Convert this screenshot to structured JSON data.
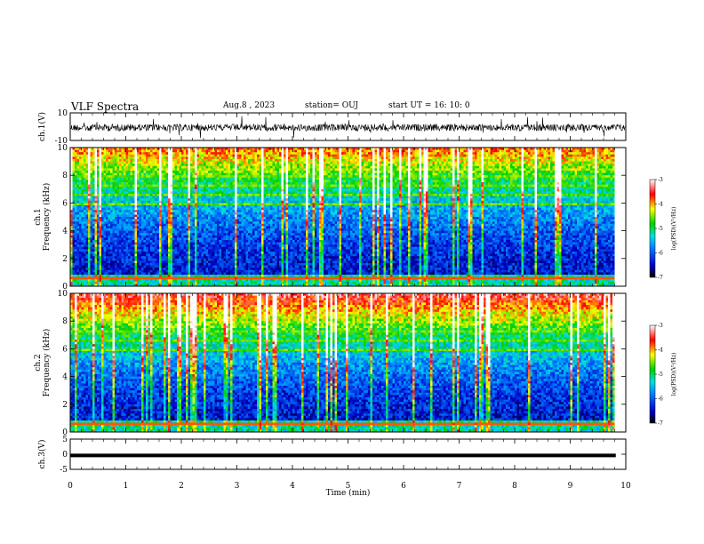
{
  "header": {
    "title": "VLF Spectra",
    "date": "Aug.8 , 2023",
    "station": "station= OUJ",
    "start": "start UT =   16: 10: 0"
  },
  "chart_data": [
    {
      "type": "line",
      "name": "ch1-waveform",
      "ylabel": "ch.1(V)",
      "ylim": [
        -10,
        10
      ],
      "yticks": [
        "10",
        "-10"
      ],
      "xlim": [
        0,
        10
      ],
      "x_units": "min"
    },
    {
      "type": "heatmap",
      "name": "ch1-spectrogram",
      "ylabel": "ch.1\nFrequency (kHz)",
      "ylim": [
        0,
        10
      ],
      "yticks": [
        "0",
        "2",
        "4",
        "6",
        "8",
        "10"
      ],
      "xlim": [
        0,
        10
      ],
      "colorbar": {
        "label": "log(PSD)(V²/Hz)",
        "range": [
          -7,
          -3
        ],
        "ticks": [
          "-3",
          "-4",
          "-5",
          "-6",
          "-7"
        ]
      }
    },
    {
      "type": "heatmap",
      "name": "ch2-spectrogram",
      "ylabel": "ch.2\nFrequency (kHz)",
      "ylim": [
        0,
        10
      ],
      "yticks": [
        "0",
        "2",
        "4",
        "6",
        "8",
        "10"
      ],
      "xlim": [
        0,
        10
      ],
      "colorbar": {
        "label": "log(PSD)(V²/Hz)",
        "range": [
          -7,
          -3
        ],
        "ticks": [
          "-3",
          "-4",
          "-5",
          "-6",
          "-7"
        ]
      }
    },
    {
      "type": "line",
      "name": "ch3-waveform",
      "ylabel": "ch.3(V)",
      "ylim": [
        -5,
        5
      ],
      "yticks": [
        "5",
        "0",
        "-5"
      ],
      "xlim": [
        0,
        10
      ],
      "constant_value": -0.4
    }
  ],
  "xaxis": {
    "label": "Time (min)",
    "ticks": [
      "0",
      "1",
      "2",
      "3",
      "4",
      "5",
      "6",
      "7",
      "8",
      "9",
      "10"
    ]
  }
}
